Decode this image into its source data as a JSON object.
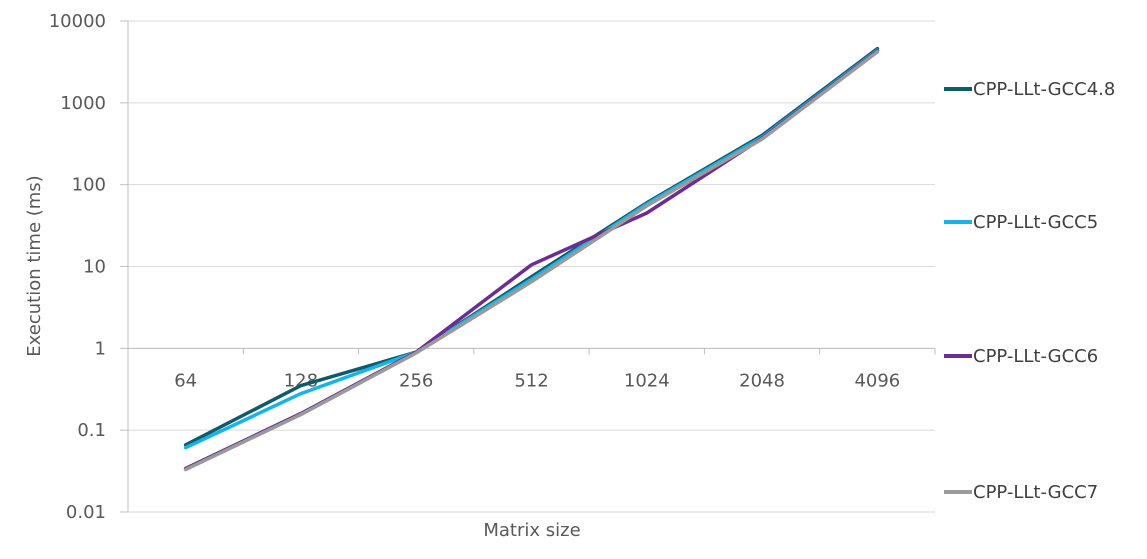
{
  "chart_data": {
    "type": "line",
    "title": "",
    "xlabel": "Matrix size",
    "ylabel": "Execution time (ms)",
    "y_scale": "log",
    "ylim": [
      0.01,
      10000
    ],
    "y_ticks": [
      "0.01",
      "0.1",
      "1",
      "10",
      "100",
      "1000",
      "10000"
    ],
    "y_tick_values": [
      0.01,
      0.1,
      1,
      10,
      100,
      1000,
      10000
    ],
    "categories": [
      "64",
      "128",
      "256",
      "512",
      "1024",
      "2048",
      "4096"
    ],
    "grid": "horizontal",
    "legend_position": "right",
    "series": [
      {
        "name": "CPP-LLt-GCC4.8",
        "color": "#0f5a6b",
        "values": [
          0.066,
          0.35,
          0.9,
          7.5,
          60,
          400,
          4600
        ]
      },
      {
        "name": "CPP-LLt-GCC5",
        "color": "#16b4e6",
        "values": [
          0.061,
          0.28,
          0.9,
          7.0,
          58,
          380,
          4400
        ]
      },
      {
        "name": "CPP-LLt-GCC6",
        "color": "#6b2d91",
        "values": [
          0.034,
          0.16,
          0.9,
          10.5,
          45,
          370,
          4300
        ]
      },
      {
        "name": "CPP-LLt-GCC7",
        "color": "#9a9a9a",
        "values": [
          0.033,
          0.155,
          0.88,
          6.5,
          55,
          360,
          4200
        ]
      }
    ]
  }
}
